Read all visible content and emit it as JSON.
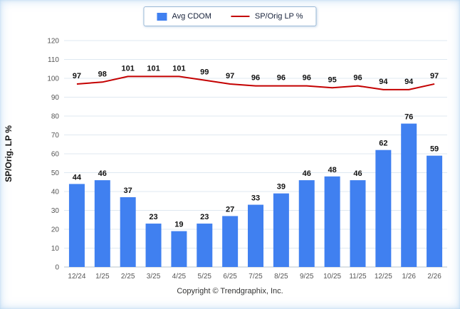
{
  "legend": {
    "bar_label": "Avg CDOM",
    "line_label": "SP/Orig LP %"
  },
  "footer": {
    "copyright": "Copyright © Trendgraphix, Inc."
  },
  "colors": {
    "bar": "#4080f0",
    "line": "#c40000",
    "grid": "#dfe8f1",
    "axis": "#b9c4ce",
    "frame_tint": "#cfe3f4"
  },
  "chart_data": {
    "type": "bar",
    "subtype": "bar-with-line-overlay",
    "categories": [
      "12/24",
      "1/25",
      "2/25",
      "3/25",
      "4/25",
      "5/25",
      "6/25",
      "7/25",
      "8/25",
      "9/25",
      "10/25",
      "11/25",
      "12/25",
      "1/26",
      "2/26"
    ],
    "series": [
      {
        "name": "Avg CDOM",
        "type": "bar",
        "color": "#4080f0",
        "values": [
          44,
          46,
          37,
          23,
          19,
          23,
          27,
          33,
          39,
          46,
          48,
          46,
          62,
          76,
          59
        ]
      },
      {
        "name": "SP/Orig LP %",
        "type": "line",
        "color": "#c40000",
        "values": [
          97,
          98,
          101,
          101,
          101,
          99,
          97,
          96,
          96,
          96,
          95,
          96,
          94,
          94,
          97
        ]
      }
    ],
    "title": "",
    "xlabel": "",
    "ylabel": "SP/Orig. LP %",
    "ylim": [
      0,
      120
    ],
    "ytick_step": 10,
    "grid": true,
    "legend_position": "top"
  }
}
